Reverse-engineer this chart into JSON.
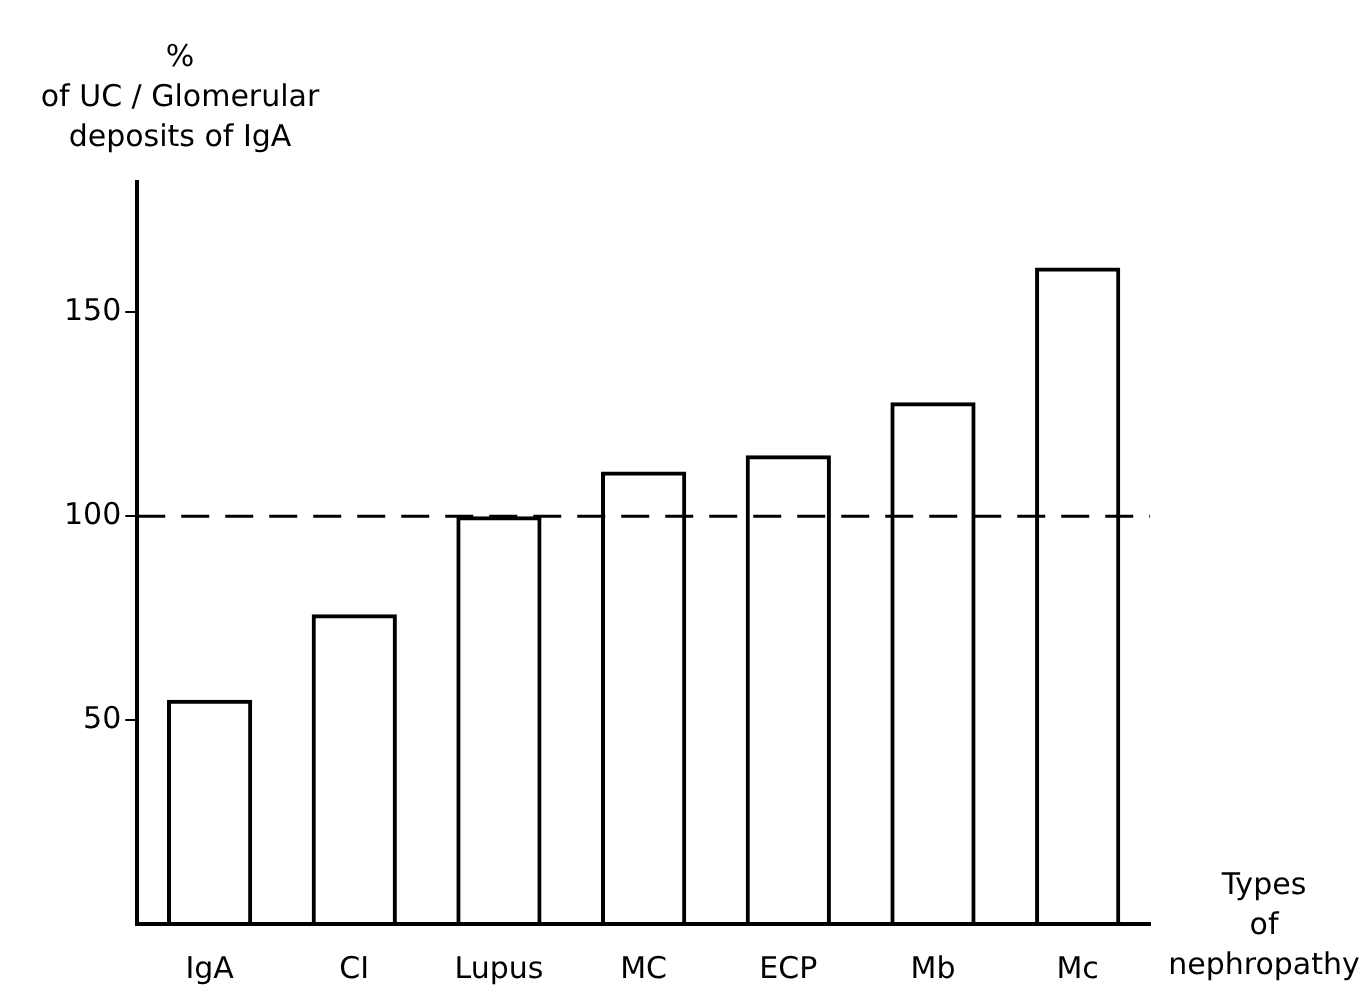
{
  "chart_data": {
    "type": "bar",
    "ylabel": "%\nof UC / Glomerular\ndeposits of IgA",
    "xlabel": "Types\nof\nnephropathy",
    "categories": [
      "IgA",
      "CI",
      "Lupus",
      "MC",
      "ECP",
      "Mb",
      "Mc"
    ],
    "values": [
      55,
      76,
      100,
      111,
      115,
      128,
      161
    ],
    "color": "#000000",
    "ylim": [
      0,
      182
    ],
    "yticks": [
      50,
      100,
      150
    ],
    "ref_lines": [
      {
        "axis": "y",
        "value": 100,
        "line_style": "dashed",
        "color": "#000000"
      }
    ]
  }
}
